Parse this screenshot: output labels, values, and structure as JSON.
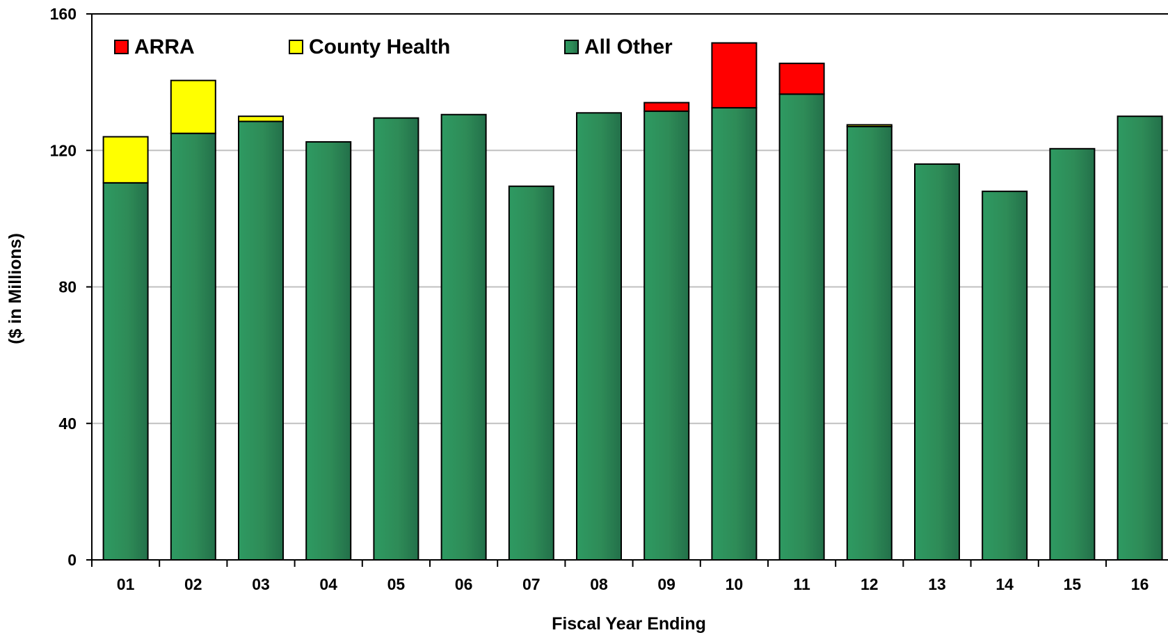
{
  "chart_data": {
    "type": "bar",
    "stacked": true,
    "title": "",
    "xlabel": "Fiscal Year Ending",
    "ylabel": "($ in Millions)",
    "ylim": [
      0,
      160
    ],
    "yticks": [
      0,
      40,
      80,
      120,
      160
    ],
    "grid": true,
    "legend_position": "top-left",
    "categories": [
      "01",
      "02",
      "03",
      "04",
      "05",
      "06",
      "07",
      "08",
      "09",
      "10",
      "11",
      "12",
      "13",
      "14",
      "15",
      "16"
    ],
    "series": [
      {
        "name": "All Other",
        "color": "#2e8b57",
        "values": [
          110.5,
          125,
          128.5,
          122.5,
          129.5,
          130.5,
          109.5,
          131,
          131.5,
          132.5,
          136.5,
          127,
          116,
          108,
          120.5,
          130
        ]
      },
      {
        "name": "County Health",
        "color": "#ffff00",
        "values": [
          13.5,
          15.5,
          1.5,
          0,
          0,
          0,
          0,
          0,
          0,
          0,
          0,
          0.5,
          0,
          0,
          0,
          0
        ]
      },
      {
        "name": "ARRA",
        "color": "#ff0000",
        "values": [
          0,
          0,
          0,
          0,
          0,
          0,
          0,
          0,
          2.5,
          19,
          9,
          0,
          0,
          0,
          0,
          0
        ]
      }
    ],
    "legend_order": [
      "ARRA",
      "County Health",
      "All Other"
    ]
  }
}
